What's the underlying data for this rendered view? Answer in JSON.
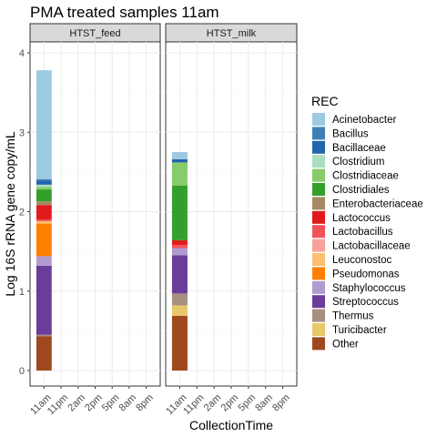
{
  "chart_data": {
    "type": "bar",
    "stacked": true,
    "title": "PMA treated samples 11am",
    "xlabel": "CollectionTime",
    "ylabel": "Log 16S rRNA gene copy/mL",
    "ylim": [
      0,
      4.1
    ],
    "yticks": [
      "0",
      "1",
      "2",
      "3",
      "4"
    ],
    "categories": [
      "11am",
      "11pm",
      "2am",
      "2pm",
      "5pm",
      "8am",
      "8pm"
    ],
    "facets": [
      "HTST_feed",
      "HTST_milk"
    ],
    "grid": true,
    "legend_position": "right",
    "legend": {
      "title": "REC",
      "items": [
        {
          "name": "Acinetobacter",
          "color": "#9ecae1"
        },
        {
          "name": "Bacillus",
          "color": "#3f7fb5"
        },
        {
          "name": "Bacillaceae",
          "color": "#2166ac"
        },
        {
          "name": "Clostridium",
          "color": "#a9dfbf"
        },
        {
          "name": "Clostridiaceae",
          "color": "#86cc6a"
        },
        {
          "name": "Clostridiales",
          "color": "#33a02c"
        },
        {
          "name": "Enterobacteriaceae",
          "color": "#a68a64"
        },
        {
          "name": "Lactococcus",
          "color": "#e31a1c"
        },
        {
          "name": "Lactobacillus",
          "color": "#f0545a"
        },
        {
          "name": "Lactobacillaceae",
          "color": "#f9a19a"
        },
        {
          "name": "Leuconostoc",
          "color": "#fdbf6f"
        },
        {
          "name": "Pseudomonas",
          "color": "#ff7f00"
        },
        {
          "name": "Staphylococcus",
          "color": "#b09bd1"
        },
        {
          "name": "Streptococcus",
          "color": "#6a3d9a"
        },
        {
          "name": "Thermus",
          "color": "#a89080"
        },
        {
          "name": "Turicibacter",
          "color": "#e8c96a"
        },
        {
          "name": "Other",
          "color": "#a0481f"
        }
      ]
    },
    "series_data": [
      {
        "facet": "HTST_feed",
        "category": "11am",
        "segments": [
          {
            "name": "Other",
            "from": 0,
            "to": 0.43
          },
          {
            "name": "Thermus",
            "from": 0.43,
            "to": 0.45
          },
          {
            "name": "Streptococcus",
            "from": 0.45,
            "to": 1.32
          },
          {
            "name": "Staphylococcus",
            "from": 1.32,
            "to": 1.44
          },
          {
            "name": "Pseudomonas",
            "from": 1.44,
            "to": 1.85
          },
          {
            "name": "Leuconostoc",
            "from": 1.85,
            "to": 1.88
          },
          {
            "name": "Lactobacillus",
            "from": 1.88,
            "to": 1.9
          },
          {
            "name": "Lactococcus",
            "from": 1.9,
            "to": 2.08
          },
          {
            "name": "Enterobacteriaceae",
            "from": 2.08,
            "to": 2.13
          },
          {
            "name": "Clostridiales",
            "from": 2.13,
            "to": 2.28
          },
          {
            "name": "Clostridiaceae",
            "from": 2.28,
            "to": 2.31
          },
          {
            "name": "Clostridium",
            "from": 2.31,
            "to": 2.34
          },
          {
            "name": "Bacillaceae",
            "from": 2.34,
            "to": 2.39
          },
          {
            "name": "Bacillus",
            "from": 2.39,
            "to": 2.41
          },
          {
            "name": "Acinetobacter",
            "from": 2.41,
            "to": 3.78
          }
        ]
      },
      {
        "facet": "HTST_milk",
        "category": "11am",
        "segments": [
          {
            "name": "Other",
            "from": 0,
            "to": 0.69
          },
          {
            "name": "Turicibacter",
            "from": 0.69,
            "to": 0.82
          },
          {
            "name": "Thermus",
            "from": 0.82,
            "to": 0.97
          },
          {
            "name": "Streptococcus",
            "from": 0.97,
            "to": 1.45
          },
          {
            "name": "Staphylococcus",
            "from": 1.45,
            "to": 1.54
          },
          {
            "name": "Lactobacillus",
            "from": 1.54,
            "to": 1.58
          },
          {
            "name": "Lactococcus",
            "from": 1.58,
            "to": 1.64
          },
          {
            "name": "Clostridiales",
            "from": 1.64,
            "to": 2.33
          },
          {
            "name": "Clostridiaceae",
            "from": 2.33,
            "to": 2.62
          },
          {
            "name": "Bacillaceae",
            "from": 2.62,
            "to": 2.66
          },
          {
            "name": "Acinetobacter",
            "from": 2.66,
            "to": 2.75
          }
        ]
      }
    ]
  }
}
